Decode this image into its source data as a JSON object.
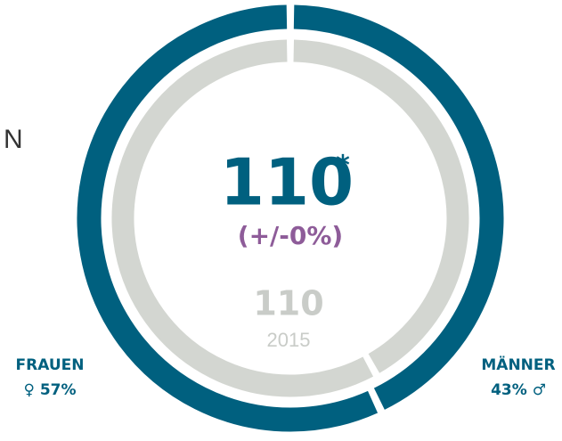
{
  "chart_data": {
    "type": "donut",
    "side_text": "N",
    "categories": [
      "MÄNNER",
      "FRAUEN"
    ],
    "values": [
      43,
      57
    ],
    "value_labels": [
      "43%",
      "57%"
    ],
    "symbols": [
      "♂",
      "♀"
    ],
    "color": "#00607f",
    "total": 110,
    "total_note": "*",
    "change": "(+/-0%)",
    "previous": {
      "values": [
        42,
        58
      ],
      "total": 110,
      "year": "2015",
      "color": "#d3d6d1"
    }
  }
}
